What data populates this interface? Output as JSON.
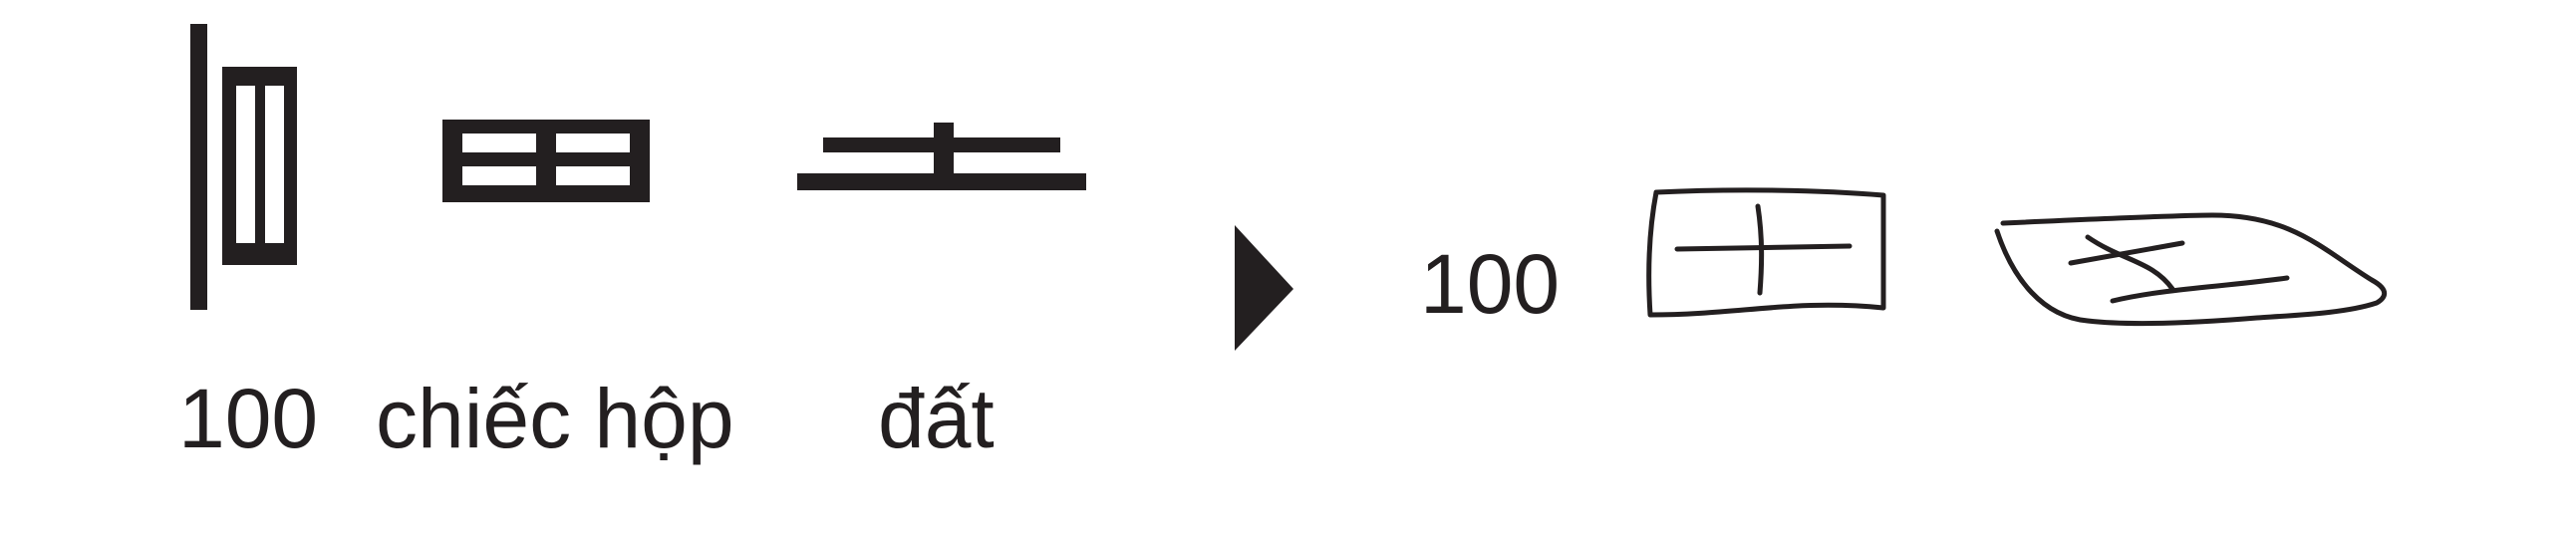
{
  "captions": {
    "number": "100",
    "box": "chiếc hộp",
    "earth": "đất"
  },
  "result": {
    "number": "100"
  },
  "icons": {
    "sign_100": "tally-100-sign-icon",
    "sign_box": "box-sign-icon",
    "sign_earth": "earth-sign-icon",
    "arrow": "play-triangle-icon",
    "sketch_box": "sketched-box-icon",
    "sketch_earth": "sketched-earth-icon"
  },
  "colors": {
    "ink": "#231f20",
    "background": "#ffffff"
  }
}
